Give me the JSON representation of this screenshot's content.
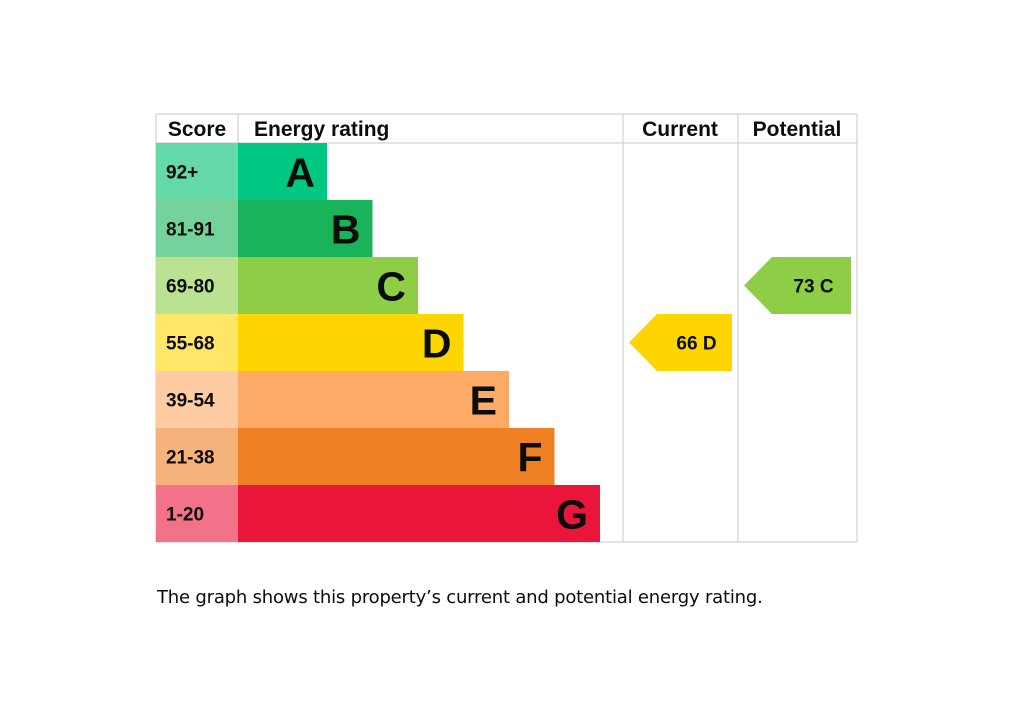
{
  "headers": {
    "score": "Score",
    "rating": "Energy rating",
    "current": "Current",
    "potential": "Potential"
  },
  "chart_data": {
    "type": "bar",
    "title": "",
    "bands": [
      {
        "letter": "A",
        "score": "92+",
        "color": "#00c781",
        "score_bg": "#66d9a9"
      },
      {
        "letter": "B",
        "score": "81-91",
        "color": "#19b459",
        "score_bg": "#75d29b"
      },
      {
        "letter": "C",
        "score": "69-80",
        "color": "#8dce46",
        "score_bg": "#bbe290"
      },
      {
        "letter": "D",
        "score": "55-68",
        "color": "#ffd500",
        "score_bg": "#ffe666"
      },
      {
        "letter": "E",
        "score": "39-54",
        "color": "#fcaa65",
        "score_bg": "#fdcca3"
      },
      {
        "letter": "F",
        "score": "21-38",
        "color": "#ef8023",
        "score_bg": "#f5b37b"
      },
      {
        "letter": "G",
        "score": "1-20",
        "color": "#e9153b",
        "score_bg": "#f27389"
      }
    ],
    "current": {
      "value": 66,
      "letter": "D",
      "label": "66  D",
      "color": "#ffd500"
    },
    "potential": {
      "value": 73,
      "letter": "C",
      "label": "73  C",
      "color": "#8dce46"
    }
  },
  "caption": "The graph shows this property’s current and potential energy rating."
}
